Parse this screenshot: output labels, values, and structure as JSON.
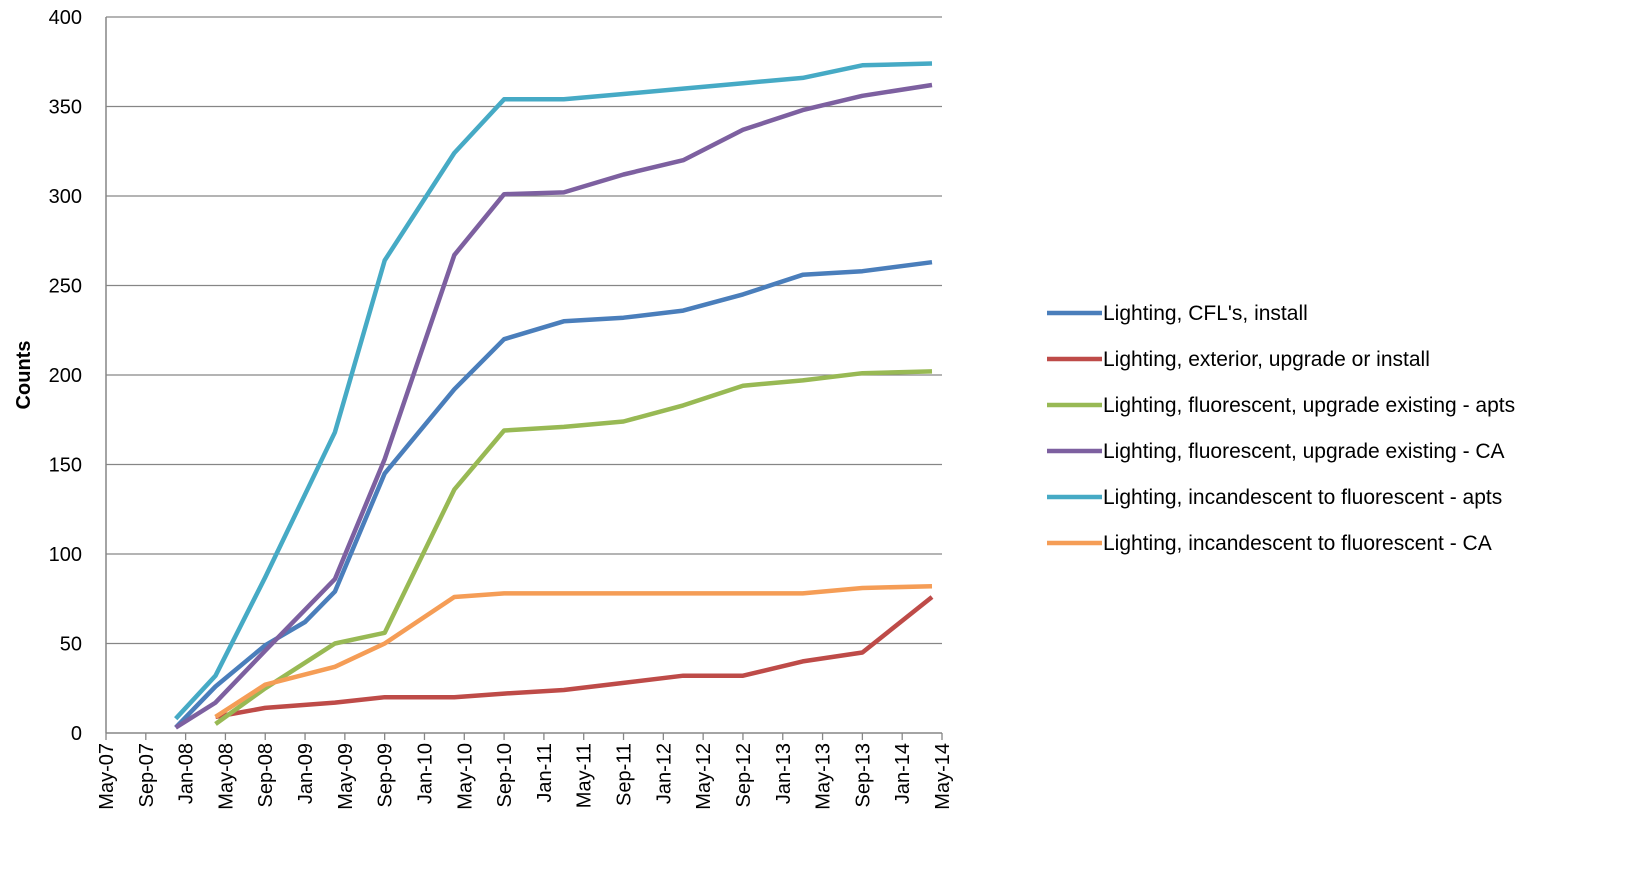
{
  "chart_data": {
    "type": "line",
    "title": "",
    "xlabel": "",
    "ylabel": "Counts",
    "ylim": [
      0,
      400
    ],
    "yticks": [
      "0",
      "50",
      "100",
      "150",
      "200",
      "250",
      "300",
      "350",
      "400"
    ],
    "categories": [
      "May-07",
      "Sep-07",
      "Jan-08",
      "May-08",
      "Sep-08",
      "Jan-09",
      "May-09",
      "Sep-09",
      "Jan-10",
      "May-10",
      "Sep-10",
      "Jan-11",
      "May-11",
      "Sep-11",
      "Jan-12",
      "May-12",
      "Sep-12",
      "Jan-13",
      "May-13",
      "Sep-13",
      "Jan-14",
      "May-14"
    ],
    "grid": "horizontal",
    "legend_position": "right",
    "series": [
      {
        "name": "Lighting, CFL's, install",
        "color": "#4a7ebb",
        "points": [
          [
            "Dec-07",
            3
          ],
          [
            "Apr-08",
            26
          ],
          [
            "Sep-08",
            49
          ],
          [
            "Jan-09",
            62
          ],
          [
            "Apr-09",
            79
          ],
          [
            "Sep-09",
            145
          ],
          [
            "Apr-10",
            192
          ],
          [
            "Sep-10",
            220
          ],
          [
            "Mar-11",
            230
          ],
          [
            "Sep-11",
            232
          ],
          [
            "Mar-12",
            236
          ],
          [
            "Sep-12",
            245
          ],
          [
            "Mar-13",
            256
          ],
          [
            "Sep-13",
            258
          ],
          [
            "Apr-14",
            263
          ]
        ]
      },
      {
        "name": "Lighting, exterior, upgrade or install",
        "color": "#be4b48",
        "points": [
          [
            "Apr-08",
            9
          ],
          [
            "Sep-08",
            14
          ],
          [
            "Apr-09",
            17
          ],
          [
            "Sep-09",
            20
          ],
          [
            "Apr-10",
            20
          ],
          [
            "Sep-10",
            22
          ],
          [
            "Mar-11",
            24
          ],
          [
            "Sep-11",
            28
          ],
          [
            "Mar-12",
            32
          ],
          [
            "Sep-12",
            32
          ],
          [
            "Mar-13",
            40
          ],
          [
            "Sep-13",
            45
          ],
          [
            "Apr-14",
            76
          ]
        ]
      },
      {
        "name": "Lighting, fluorescent, upgrade existing - apts",
        "color": "#98b954",
        "points": [
          [
            "Apr-08",
            5
          ],
          [
            "Sep-08",
            25
          ],
          [
            "Apr-09",
            50
          ],
          [
            "Sep-09",
            56
          ],
          [
            "Apr-10",
            136
          ],
          [
            "Sep-10",
            169
          ],
          [
            "Mar-11",
            171
          ],
          [
            "Sep-11",
            174
          ],
          [
            "Mar-12",
            183
          ],
          [
            "Sep-12",
            194
          ],
          [
            "Mar-13",
            197
          ],
          [
            "Sep-13",
            201
          ],
          [
            "Apr-14",
            202
          ]
        ]
      },
      {
        "name": "Lighting, fluorescent, upgrade existing - CA",
        "color": "#7d60a0",
        "points": [
          [
            "Dec-07",
            3
          ],
          [
            "Apr-08",
            17
          ],
          [
            "Sep-08",
            46
          ],
          [
            "Apr-09",
            86
          ],
          [
            "Sep-09",
            153
          ],
          [
            "Apr-10",
            267
          ],
          [
            "Sep-10",
            301
          ],
          [
            "Mar-11",
            302
          ],
          [
            "Sep-11",
            312
          ],
          [
            "Mar-12",
            320
          ],
          [
            "Sep-12",
            337
          ],
          [
            "Mar-13",
            348
          ],
          [
            "Sep-13",
            356
          ],
          [
            "Apr-14",
            362
          ]
        ]
      },
      {
        "name": "Lighting, incandescent to fluorescent - apts",
        "color": "#46aac5",
        "points": [
          [
            "Dec-07",
            8
          ],
          [
            "Apr-08",
            32
          ],
          [
            "Sep-08",
            87
          ],
          [
            "Apr-09",
            168
          ],
          [
            "Sep-09",
            264
          ],
          [
            "Apr-10",
            324
          ],
          [
            "Sep-10",
            354
          ],
          [
            "Mar-11",
            354
          ],
          [
            "Sep-11",
            357
          ],
          [
            "Mar-12",
            360
          ],
          [
            "Sep-12",
            363
          ],
          [
            "Mar-13",
            366
          ],
          [
            "Sep-13",
            373
          ],
          [
            "Apr-14",
            374
          ]
        ]
      },
      {
        "name": "Lighting, incandescent to fluorescent - CA",
        "color": "#f59d56",
        "points": [
          [
            "Apr-08",
            9
          ],
          [
            "Sep-08",
            27
          ],
          [
            "Apr-09",
            37
          ],
          [
            "Sep-09",
            50
          ],
          [
            "Apr-10",
            76
          ],
          [
            "Sep-10",
            78
          ],
          [
            "Mar-11",
            78
          ],
          [
            "Sep-11",
            78
          ],
          [
            "Mar-12",
            78
          ],
          [
            "Sep-12",
            78
          ],
          [
            "Mar-13",
            78
          ],
          [
            "Sep-13",
            81
          ],
          [
            "Apr-14",
            82
          ]
        ]
      }
    ]
  }
}
